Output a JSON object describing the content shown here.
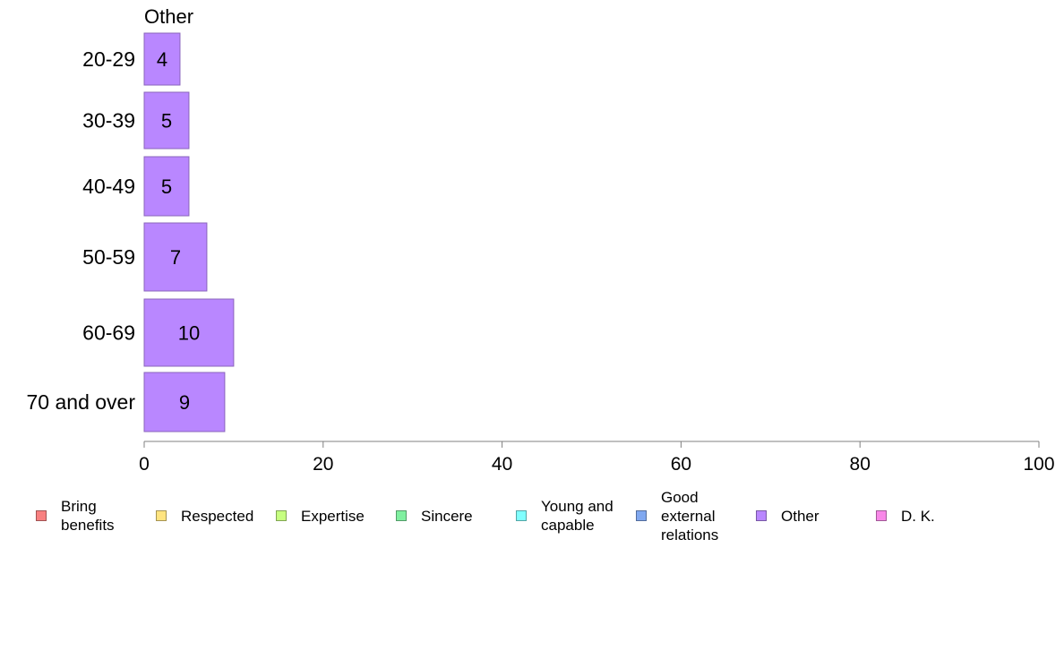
{
  "chart_data": {
    "type": "bar",
    "orientation": "horizontal",
    "title": "Other",
    "categories": [
      "20-29",
      "30-39",
      "40-49",
      "50-59",
      "60-69",
      "70 and over"
    ],
    "series": [
      {
        "name": "Other",
        "color": "#b987ff",
        "values": [
          4,
          5,
          5,
          7,
          10,
          9
        ]
      }
    ],
    "data_labels": [
      "4",
      "5",
      "5",
      "7",
      "10",
      "9"
    ],
    "xlim": [
      0,
      100
    ],
    "x_ticks": [
      "0",
      "20",
      "40",
      "60",
      "80",
      "100"
    ],
    "grid": false,
    "legend_position": "bottom"
  },
  "legend": [
    {
      "label": "Bring\nbenefits",
      "color": "#f88080"
    },
    {
      "label": "Respected",
      "color": "#ffe480"
    },
    {
      "label": "Expertise",
      "color": "#c6ff80"
    },
    {
      "label": "Sincere",
      "color": "#80f0a0"
    },
    {
      "label": "Young and\ncapable",
      "color": "#80ffff"
    },
    {
      "label": "Good\nexternal\nrelations",
      "color": "#80a8f0"
    },
    {
      "label": "Other",
      "color": "#b987ff"
    },
    {
      "label": "D. K.",
      "color": "#f888e8"
    }
  ]
}
